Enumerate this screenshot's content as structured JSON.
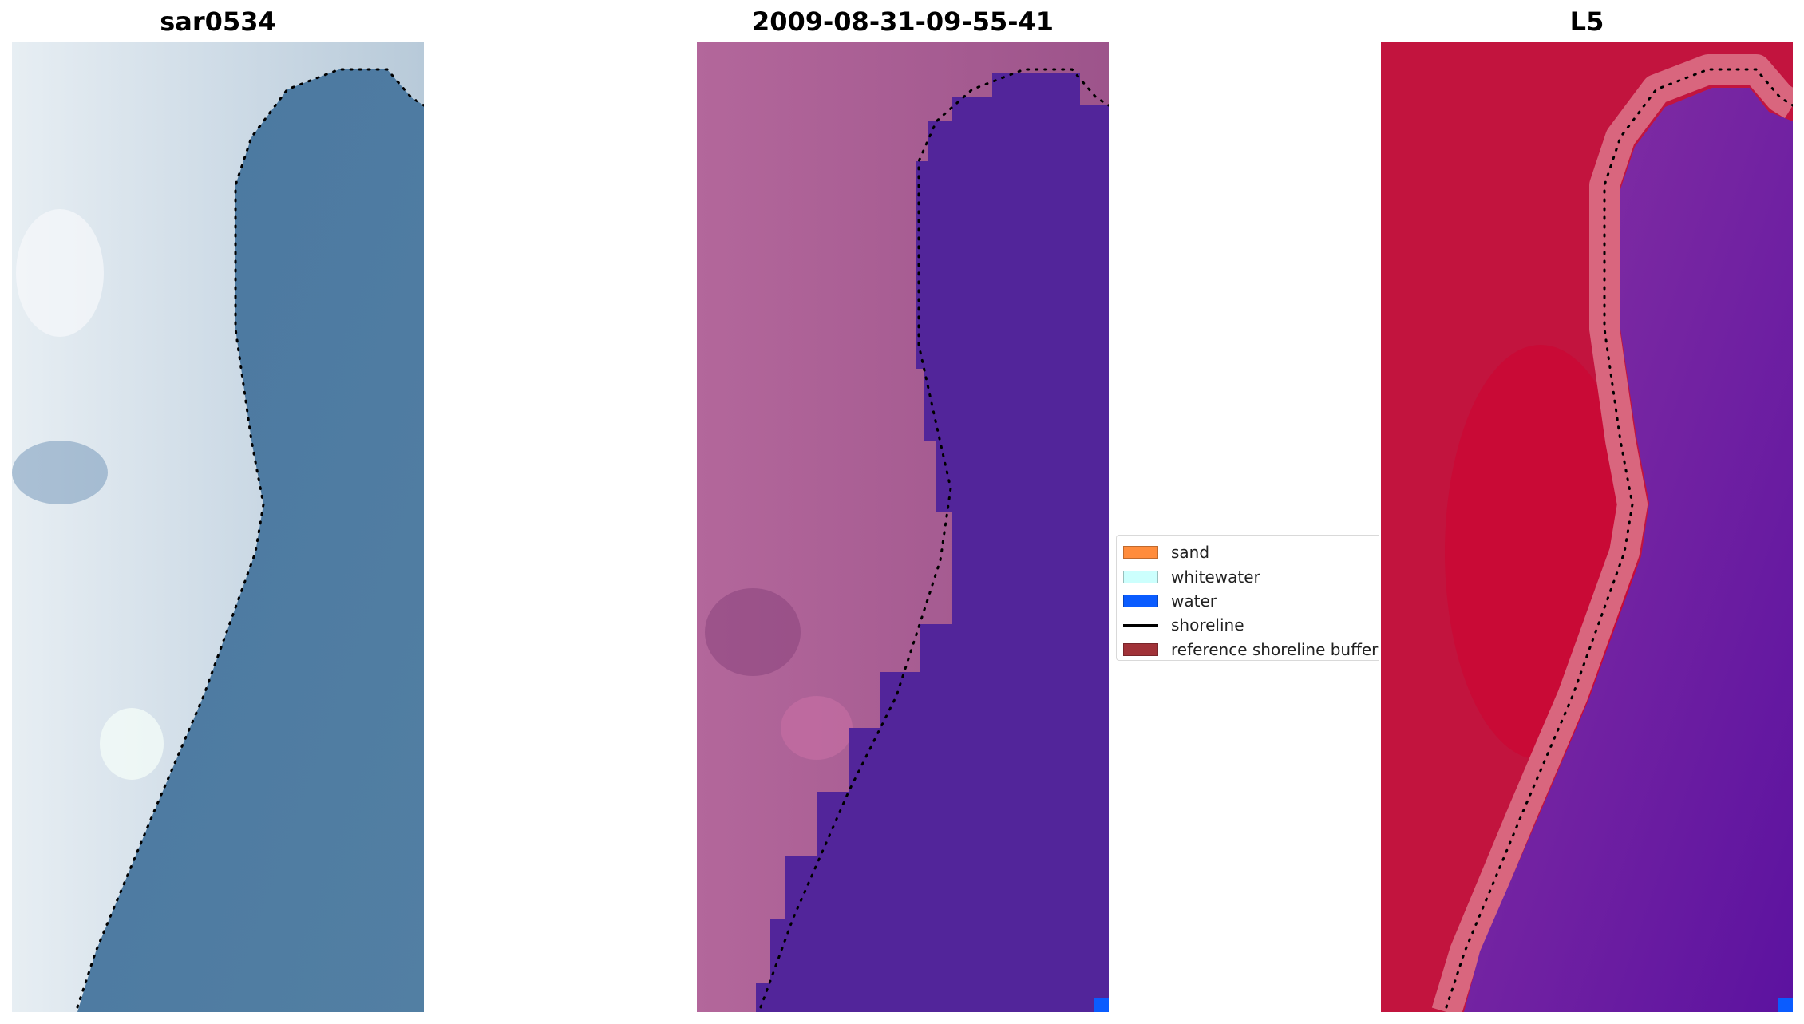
{
  "panels": [
    {
      "title": "sar0534",
      "kind": "rgb"
    },
    {
      "title": "2009-08-31-09-55-41",
      "kind": "classification"
    },
    {
      "title": "L5",
      "kind": "index"
    }
  ],
  "legend": {
    "items": [
      {
        "label": "sand",
        "color": "#ff8c3c",
        "type": "patch"
      },
      {
        "label": "whitewater",
        "color": "#ccfffd",
        "type": "patch"
      },
      {
        "label": "water",
        "color": "#0a5cff",
        "type": "patch"
      },
      {
        "label": "shoreline",
        "color": "#000000",
        "type": "line"
      },
      {
        "label": "reference shoreline buffer",
        "color": "#a03238",
        "type": "patch"
      }
    ]
  },
  "colors": {
    "land_rgb": "#c9d6e2",
    "sea_rgb": "#4e7da3",
    "land_classified": "#a65a92",
    "water_classified": "#52259a",
    "land_index": "#c2143e",
    "water_index": "#7a2aa8",
    "buffer_index": "#d9667e"
  }
}
